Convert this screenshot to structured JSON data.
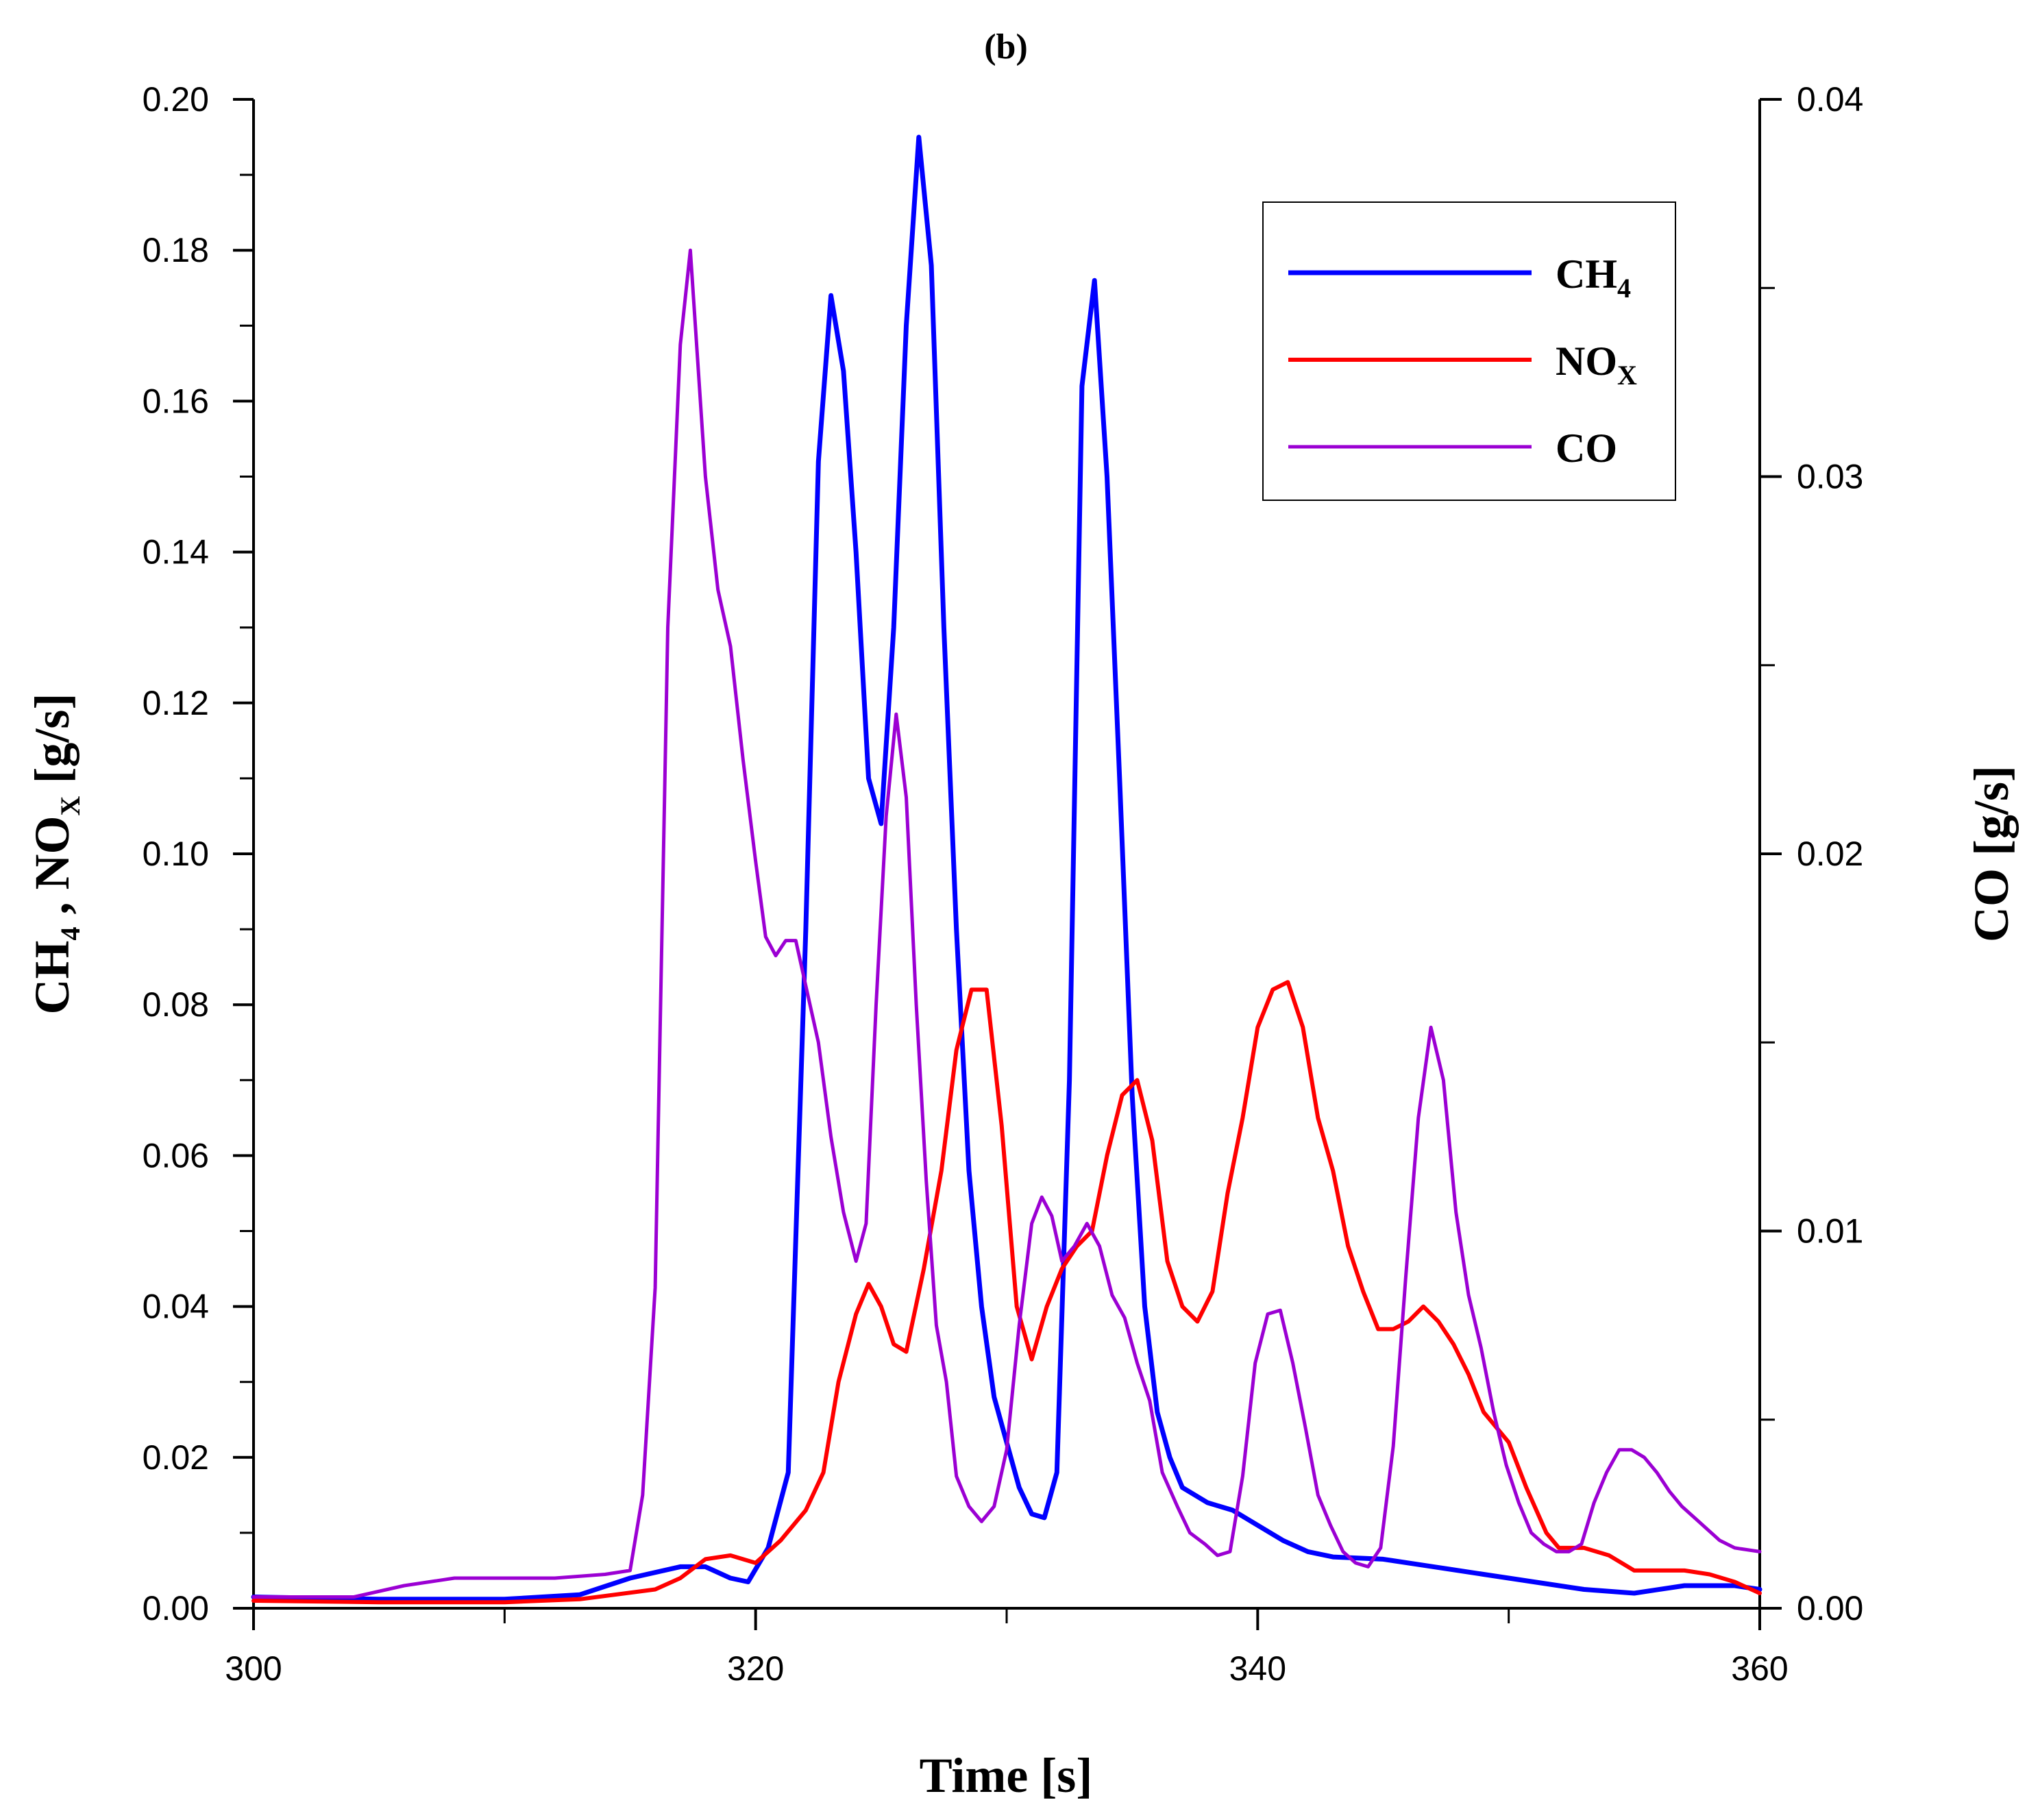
{
  "chart_data": {
    "type": "line",
    "title": "(b)",
    "xlabel": "Time [s]",
    "ylabel_left": {
      "main": "CH",
      "sub1": "4",
      "mid": " , NO",
      "sub2": "X",
      "tail": " [g/s]"
    },
    "ylabel_right": "CO [g/s]",
    "xlim": [
      300,
      360
    ],
    "ylim_left": [
      0,
      0.2
    ],
    "ylim_right": [
      0,
      0.04
    ],
    "x_ticks": [
      "300",
      "320",
      "340",
      "360"
    ],
    "x_tick_values": [
      300,
      320,
      340,
      360
    ],
    "y_left_ticks": [
      "0.00",
      "0.02",
      "0.04",
      "0.06",
      "0.08",
      "0.10",
      "0.12",
      "0.14",
      "0.16",
      "0.18",
      "0.20"
    ],
    "y_left_tick_values": [
      0,
      0.02,
      0.04,
      0.06,
      0.08,
      0.1,
      0.12,
      0.14,
      0.16,
      0.18,
      0.2
    ],
    "y_right_ticks": [
      "0.00",
      "0.01",
      "0.02",
      "0.03",
      "0.04"
    ],
    "y_right_tick_values": [
      0,
      0.01,
      0.02,
      0.03,
      0.04
    ],
    "legend_position": "top-right",
    "series": [
      {
        "name": "CH",
        "name_sub": "4",
        "axis": "left",
        "color": "#0000ff",
        "width": 7,
        "points": [
          [
            300,
            0.0015
          ],
          [
            305,
            0.0012
          ],
          [
            310,
            0.0012
          ],
          [
            313,
            0.0018
          ],
          [
            315,
            0.004
          ],
          [
            317,
            0.0055
          ],
          [
            318,
            0.0055
          ],
          [
            319,
            0.004
          ],
          [
            319.7,
            0.0035
          ],
          [
            320.5,
            0.008
          ],
          [
            321.3,
            0.018
          ],
          [
            322,
            0.09
          ],
          [
            322.5,
            0.152
          ],
          [
            323,
            0.174
          ],
          [
            323.5,
            0.164
          ],
          [
            324,
            0.14
          ],
          [
            324.5,
            0.11
          ],
          [
            325,
            0.104
          ],
          [
            325.5,
            0.13
          ],
          [
            326,
            0.17
          ],
          [
            326.5,
            0.195
          ],
          [
            327,
            0.178
          ],
          [
            327.5,
            0.13
          ],
          [
            328,
            0.09
          ],
          [
            328.5,
            0.058
          ],
          [
            329,
            0.04
          ],
          [
            329.5,
            0.028
          ],
          [
            330,
            0.022
          ],
          [
            330.5,
            0.016
          ],
          [
            331,
            0.0125
          ],
          [
            331.5,
            0.012
          ],
          [
            332,
            0.018
          ],
          [
            332.5,
            0.07
          ],
          [
            333,
            0.162
          ],
          [
            333.5,
            0.176
          ],
          [
            334,
            0.15
          ],
          [
            334.5,
            0.11
          ],
          [
            335,
            0.068
          ],
          [
            335.5,
            0.04
          ],
          [
            336,
            0.026
          ],
          [
            336.5,
            0.02
          ],
          [
            337,
            0.016
          ],
          [
            338,
            0.014
          ],
          [
            339,
            0.013
          ],
          [
            340,
            0.011
          ],
          [
            341,
            0.009
          ],
          [
            342,
            0.0075
          ],
          [
            343,
            0.0068
          ],
          [
            345,
            0.0065
          ],
          [
            347,
            0.0055
          ],
          [
            349,
            0.0045
          ],
          [
            351,
            0.0035
          ],
          [
            353,
            0.0025
          ],
          [
            355,
            0.002
          ],
          [
            357,
            0.003
          ],
          [
            359,
            0.003
          ],
          [
            360,
            0.0025
          ]
        ]
      },
      {
        "name": "NO",
        "name_sub": "X",
        "axis": "left",
        "color": "#ff0000",
        "width": 6,
        "points": [
          [
            300,
            0.001
          ],
          [
            305,
            0.0008
          ],
          [
            310,
            0.0008
          ],
          [
            313,
            0.0012
          ],
          [
            316,
            0.0025
          ],
          [
            317,
            0.004
          ],
          [
            318,
            0.0065
          ],
          [
            319,
            0.007
          ],
          [
            320,
            0.006
          ],
          [
            321,
            0.009
          ],
          [
            322,
            0.013
          ],
          [
            322.7,
            0.018
          ],
          [
            323.3,
            0.03
          ],
          [
            324,
            0.039
          ],
          [
            324.5,
            0.043
          ],
          [
            325,
            0.04
          ],
          [
            325.5,
            0.035
          ],
          [
            326,
            0.034
          ],
          [
            326.7,
            0.045
          ],
          [
            327.4,
            0.058
          ],
          [
            328,
            0.074
          ],
          [
            328.6,
            0.082
          ],
          [
            329.2,
            0.082
          ],
          [
            329.8,
            0.064
          ],
          [
            330.4,
            0.04
          ],
          [
            331,
            0.033
          ],
          [
            331.6,
            0.04
          ],
          [
            332.2,
            0.045
          ],
          [
            332.8,
            0.048
          ],
          [
            333.4,
            0.05
          ],
          [
            334,
            0.06
          ],
          [
            334.6,
            0.068
          ],
          [
            335.2,
            0.07
          ],
          [
            335.8,
            0.062
          ],
          [
            336.4,
            0.046
          ],
          [
            337,
            0.04
          ],
          [
            337.6,
            0.038
          ],
          [
            338.2,
            0.042
          ],
          [
            338.8,
            0.055
          ],
          [
            339.4,
            0.065
          ],
          [
            340,
            0.077
          ],
          [
            340.6,
            0.082
          ],
          [
            341.2,
            0.083
          ],
          [
            341.8,
            0.077
          ],
          [
            342.4,
            0.065
          ],
          [
            343,
            0.058
          ],
          [
            343.6,
            0.048
          ],
          [
            344.2,
            0.042
          ],
          [
            344.8,
            0.037
          ],
          [
            345.4,
            0.037
          ],
          [
            346,
            0.038
          ],
          [
            346.6,
            0.04
          ],
          [
            347.2,
            0.038
          ],
          [
            347.8,
            0.035
          ],
          [
            348.4,
            0.031
          ],
          [
            349,
            0.026
          ],
          [
            350,
            0.022
          ],
          [
            350.7,
            0.016
          ],
          [
            351.5,
            0.01
          ],
          [
            352,
            0.008
          ],
          [
            353,
            0.008
          ],
          [
            354,
            0.007
          ],
          [
            355,
            0.005
          ],
          [
            356,
            0.005
          ],
          [
            357,
            0.005
          ],
          [
            358,
            0.0045
          ],
          [
            359,
            0.0035
          ],
          [
            360,
            0.002
          ]
        ]
      },
      {
        "name": "CO",
        "name_sub": "",
        "axis": "right",
        "color": "#9b00d3",
        "width": 5,
        "points": [
          [
            300,
            0.0003
          ],
          [
            304,
            0.0003
          ],
          [
            306,
            0.0006
          ],
          [
            308,
            0.0008
          ],
          [
            310,
            0.0008
          ],
          [
            312,
            0.0008
          ],
          [
            314,
            0.0009
          ],
          [
            315,
            0.001
          ],
          [
            315.5,
            0.003
          ],
          [
            316,
            0.0085
          ],
          [
            316.5,
            0.026
          ],
          [
            317,
            0.0335
          ],
          [
            317.4,
            0.036
          ],
          [
            318,
            0.03
          ],
          [
            318.5,
            0.027
          ],
          [
            319,
            0.0255
          ],
          [
            319.5,
            0.0225
          ],
          [
            320,
            0.0198
          ],
          [
            320.4,
            0.0178
          ],
          [
            320.8,
            0.0173
          ],
          [
            321.2,
            0.0177
          ],
          [
            321.6,
            0.0177
          ],
          [
            322,
            0.0165
          ],
          [
            322.5,
            0.015
          ],
          [
            323,
            0.0125
          ],
          [
            323.5,
            0.0105
          ],
          [
            324,
            0.0092
          ],
          [
            324.4,
            0.0102
          ],
          [
            324.8,
            0.016
          ],
          [
            325.2,
            0.021
          ],
          [
            325.6,
            0.0237
          ],
          [
            326,
            0.0215
          ],
          [
            326.4,
            0.016
          ],
          [
            326.8,
            0.0113
          ],
          [
            327.2,
            0.0075
          ],
          [
            327.6,
            0.006
          ],
          [
            328,
            0.0035
          ],
          [
            328.5,
            0.0027
          ],
          [
            329,
            0.0023
          ],
          [
            329.5,
            0.0027
          ],
          [
            330,
            0.0042
          ],
          [
            330.5,
            0.0075
          ],
          [
            331,
            0.0102
          ],
          [
            331.4,
            0.0109
          ],
          [
            331.8,
            0.0104
          ],
          [
            332.2,
            0.0092
          ],
          [
            332.7,
            0.0096
          ],
          [
            333.2,
            0.0102
          ],
          [
            333.7,
            0.0096
          ],
          [
            334.2,
            0.0083
          ],
          [
            334.7,
            0.0077
          ],
          [
            335.2,
            0.0065
          ],
          [
            335.7,
            0.0055
          ],
          [
            336.2,
            0.0036
          ],
          [
            336.8,
            0.0027
          ],
          [
            337.3,
            0.002
          ],
          [
            337.9,
            0.0017
          ],
          [
            338.4,
            0.0014
          ],
          [
            338.9,
            0.0015
          ],
          [
            339.4,
            0.0035
          ],
          [
            339.9,
            0.0065
          ],
          [
            340.4,
            0.0078
          ],
          [
            340.9,
            0.0079
          ],
          [
            341.4,
            0.0065
          ],
          [
            341.9,
            0.0048
          ],
          [
            342.4,
            0.003
          ],
          [
            342.9,
            0.0022
          ],
          [
            343.4,
            0.0015
          ],
          [
            343.9,
            0.0012
          ],
          [
            344.4,
            0.0011
          ],
          [
            344.9,
            0.0016
          ],
          [
            345.4,
            0.0043
          ],
          [
            345.9,
            0.0088
          ],
          [
            346.4,
            0.013
          ],
          [
            346.9,
            0.0154
          ],
          [
            347.4,
            0.014
          ],
          [
            347.9,
            0.0105
          ],
          [
            348.4,
            0.0083
          ],
          [
            348.9,
            0.0069
          ],
          [
            349.4,
            0.0052
          ],
          [
            349.9,
            0.0038
          ],
          [
            350.4,
            0.0028
          ],
          [
            350.9,
            0.002
          ],
          [
            351.4,
            0.0017
          ],
          [
            351.9,
            0.0015
          ],
          [
            352.4,
            0.0015
          ],
          [
            352.9,
            0.0017
          ],
          [
            353.4,
            0.0028
          ],
          [
            353.9,
            0.0036
          ],
          [
            354.4,
            0.0042
          ],
          [
            354.9,
            0.0042
          ],
          [
            355.4,
            0.004
          ],
          [
            355.9,
            0.0036
          ],
          [
            356.4,
            0.0031
          ],
          [
            356.9,
            0.0027
          ],
          [
            357.4,
            0.0024
          ],
          [
            357.9,
            0.0021
          ],
          [
            358.4,
            0.0018
          ],
          [
            359,
            0.0016
          ],
          [
            360,
            0.0015
          ]
        ]
      }
    ]
  }
}
